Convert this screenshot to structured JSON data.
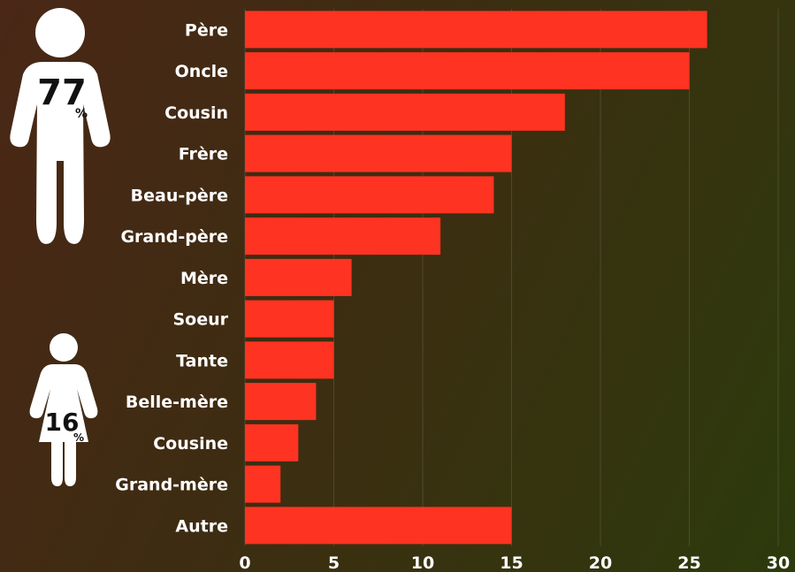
{
  "chart_data": {
    "type": "bar",
    "orientation": "horizontal",
    "categories": [
      "Père",
      "Oncle",
      "Cousin",
      "Frère",
      "Beau-père",
      "Grand-père",
      "Mère",
      "Soeur",
      "Tante",
      "Belle-mère",
      "Cousine",
      "Grand-mère",
      "Autre"
    ],
    "values": [
      26,
      25,
      18,
      15,
      14,
      11,
      6,
      5,
      5,
      4,
      3,
      2,
      15
    ],
    "xlim": [
      0,
      30
    ],
    "xticks": [
      "0",
      "5",
      "10",
      "15",
      "20",
      "25",
      "30"
    ],
    "grid": "vertical",
    "bar_color": "#ff3321"
  },
  "infographic": {
    "male_percent": "77",
    "female_percent": "16",
    "percent_sign": "%",
    "male_icon": "man-icon",
    "female_icon": "woman-icon",
    "icon_color": "#ffffff"
  }
}
